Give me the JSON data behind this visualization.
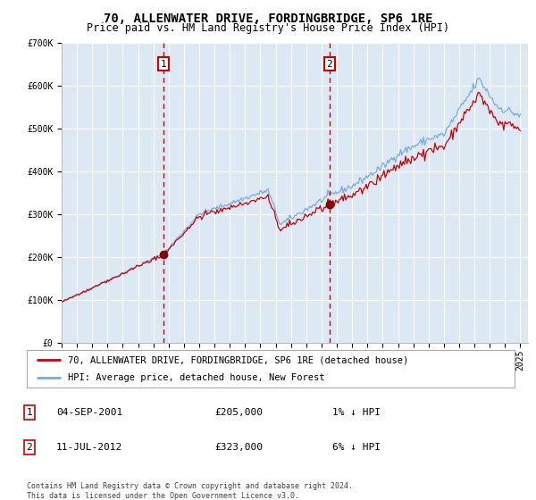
{
  "title": "70, ALLENWATER DRIVE, FORDINGBRIDGE, SP6 1RE",
  "subtitle": "Price paid vs. HM Land Registry's House Price Index (HPI)",
  "ylim": [
    0,
    700000
  ],
  "yticks": [
    0,
    100000,
    200000,
    300000,
    400000,
    500000,
    600000,
    700000
  ],
  "ytick_labels": [
    "£0",
    "£100K",
    "£200K",
    "£300K",
    "£400K",
    "£500K",
    "£600K",
    "£700K"
  ],
  "background_color": "#ffffff",
  "plot_bg_color": "#dce9f5",
  "grid_color": "#ffffff",
  "hpi_line_color": "#7aaadd",
  "price_line_color": "#cc0000",
  "sale1_date_num": 2001.67,
  "sale1_price": 205000,
  "sale2_date_num": 2012.52,
  "sale2_price": 323000,
  "legend_entries": [
    "70, ALLENWATER DRIVE, FORDINGBRIDGE, SP6 1RE (detached house)",
    "HPI: Average price, detached house, New Forest"
  ],
  "table_entries": [
    {
      "num": "1",
      "date": "04-SEP-2001",
      "price": "£205,000",
      "hpi": "1% ↓ HPI"
    },
    {
      "num": "2",
      "date": "11-JUL-2012",
      "price": "£323,000",
      "hpi": "6% ↓ HPI"
    }
  ],
  "footnote": "Contains HM Land Registry data © Crown copyright and database right 2024.\nThis data is licensed under the Open Government Licence v3.0.",
  "title_fontsize": 10,
  "subtitle_fontsize": 8.5,
  "tick_fontsize": 7,
  "legend_fontsize": 7.5
}
